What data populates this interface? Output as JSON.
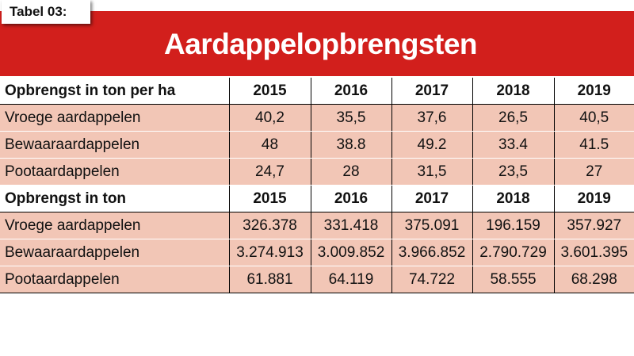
{
  "tag": "Tabel 03:",
  "colors": {
    "banner": "#d21f1c",
    "row_fill": "#f2c6b6"
  },
  "chart_data": {
    "type": "table",
    "title": "Aardappelopbrengsten",
    "sections": [
      {
        "header": "Opbrengst in ton per ha",
        "years": [
          "2015",
          "2016",
          "2017",
          "2018",
          "2019"
        ],
        "rows": [
          {
            "label": "Vroege aardappelen",
            "values": [
              "40,2",
              "35,5",
              "37,6",
              "26,5",
              "40,5"
            ]
          },
          {
            "label": "Bewaaraardappelen",
            "values": [
              "48",
              "38.8",
              "49.2",
              "33.4",
              "41.5"
            ]
          },
          {
            "label": "Pootaardappelen",
            "values": [
              "24,7",
              "28",
              "31,5",
              "23,5",
              "27"
            ]
          }
        ]
      },
      {
        "header": "Opbrengst in ton",
        "years": [
          "2015",
          "2016",
          "2017",
          "2018",
          "2019"
        ],
        "rows": [
          {
            "label": "Vroege aardappelen",
            "values": [
              "326.378",
              "331.418",
              "375.091",
              "196.159",
              "357.927"
            ]
          },
          {
            "label": "Bewaaraardappelen",
            "values": [
              "3.274.913",
              "3.009.852",
              "3.966.852",
              "2.790.729",
              "3.601.395"
            ]
          },
          {
            "label": "Pootaardappelen",
            "values": [
              "61.881",
              "64.119",
              "74.722",
              "58.555",
              "68.298"
            ]
          }
        ]
      }
    ]
  }
}
